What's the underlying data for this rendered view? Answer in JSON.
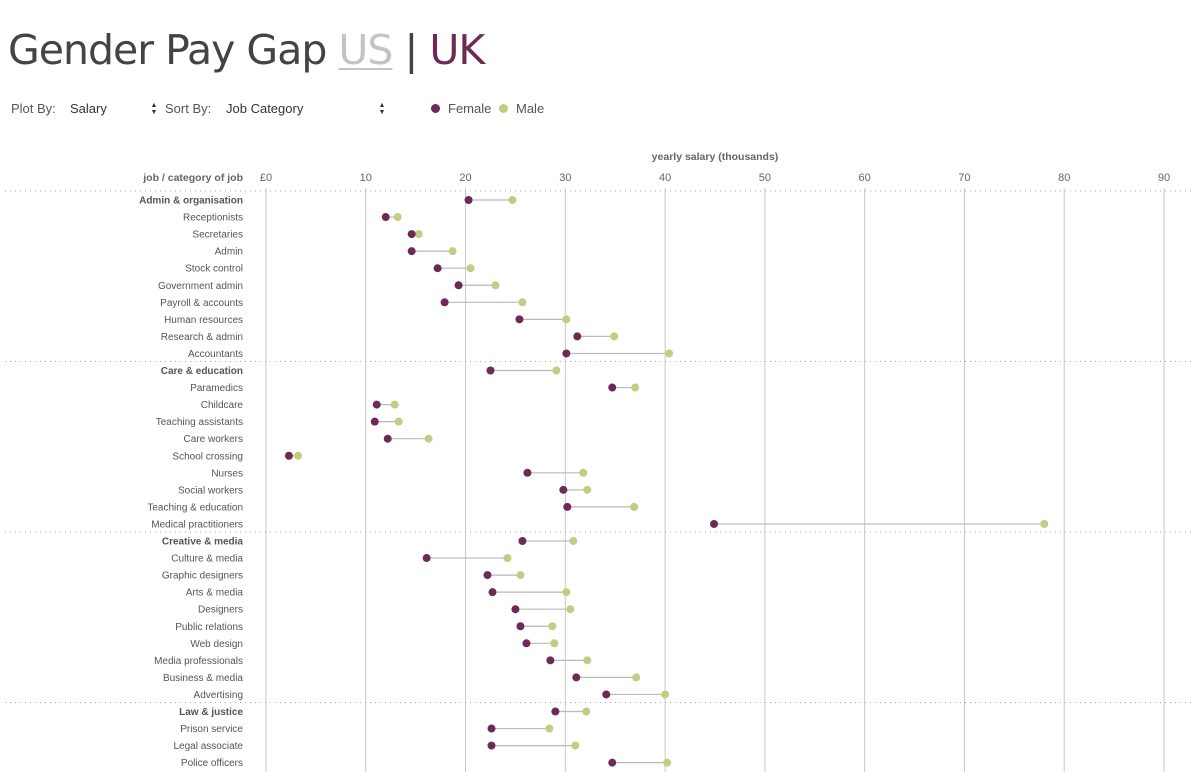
{
  "title": {
    "main": "Gender Pay Gap",
    "us_link": "US",
    "separator": "|",
    "uk_label": "UK"
  },
  "controls": {
    "plot_by_label": "Plot By:",
    "plot_by_value": "Salary",
    "sort_by_label": "Sort By:",
    "sort_by_value": "Job Category"
  },
  "colors": {
    "female": "#6d2a55",
    "male": "#c5cc82",
    "line": "#b9b9b9",
    "grid": "#c8c8c8"
  },
  "chart_data": {
    "type": "dumbbell",
    "title": "yearly salary (thousands)",
    "ylabel": "job / category of job",
    "xlim": [
      0,
      90
    ],
    "ticks": [
      0,
      10,
      20,
      30,
      40,
      50,
      60,
      70,
      80,
      90
    ],
    "tick_labels": [
      "£0",
      "10",
      "20",
      "30",
      "40",
      "50",
      "60",
      "70",
      "80",
      "90"
    ],
    "legend": [
      {
        "name": "Female",
        "key": "female"
      },
      {
        "name": "Male",
        "key": "male"
      }
    ],
    "groups": [
      {
        "category": "Admin & organisation",
        "female": 20.3,
        "male": 24.7,
        "rows": [
          {
            "label": "Receptionists",
            "female": 12.0,
            "male": 13.2
          },
          {
            "label": "Secretaries",
            "female": 14.6,
            "male": 15.3
          },
          {
            "label": "Admin",
            "female": 14.6,
            "male": 18.7
          },
          {
            "label": "Stock control",
            "female": 17.2,
            "male": 20.5
          },
          {
            "label": "Government admin",
            "female": 19.3,
            "male": 23.0
          },
          {
            "label": "Payroll & accounts",
            "female": 17.9,
            "male": 25.7
          },
          {
            "label": "Human resources",
            "female": 25.4,
            "male": 30.1
          },
          {
            "label": "Research & admin",
            "female": 31.2,
            "male": 34.9
          },
          {
            "label": "Accountants",
            "female": 30.1,
            "male": 40.4
          }
        ]
      },
      {
        "category": "Care & education",
        "female": 22.5,
        "male": 29.1,
        "rows": [
          {
            "label": "Paramedics",
            "female": 34.7,
            "male": 37.0
          },
          {
            "label": "Childcare",
            "female": 11.1,
            "male": 12.9
          },
          {
            "label": "Teaching assistants",
            "female": 10.9,
            "male": 13.3
          },
          {
            "label": "Care workers",
            "female": 12.2,
            "male": 16.3
          },
          {
            "label": "School crossing",
            "female": 2.3,
            "male": 3.2
          },
          {
            "label": "Nurses",
            "female": 26.2,
            "male": 31.8
          },
          {
            "label": "Social workers",
            "female": 29.8,
            "male": 32.2
          },
          {
            "label": "Teaching & education",
            "female": 30.2,
            "male": 36.9
          },
          {
            "label": "Medical practitioners",
            "female": 44.9,
            "male": 78.0
          }
        ]
      },
      {
        "category": "Creative & media",
        "female": 25.7,
        "male": 30.8,
        "rows": [
          {
            "label": "Culture & media",
            "female": 16.1,
            "male": 24.2
          },
          {
            "label": "Graphic designers",
            "female": 22.2,
            "male": 25.5
          },
          {
            "label": "Arts & media",
            "female": 22.7,
            "male": 30.1
          },
          {
            "label": "Designers",
            "female": 25.0,
            "male": 30.5
          },
          {
            "label": "Public relations",
            "female": 25.5,
            "male": 28.7
          },
          {
            "label": "Web design",
            "female": 26.1,
            "male": 28.9
          },
          {
            "label": "Media professionals",
            "female": 28.5,
            "male": 32.2
          },
          {
            "label": "Business & media",
            "female": 31.1,
            "male": 37.1
          },
          {
            "label": "Advertising",
            "female": 34.1,
            "male": 40.0
          }
        ]
      },
      {
        "category": "Law & justice",
        "female": 29.0,
        "male": 32.1,
        "rows": [
          {
            "label": "Prison service",
            "female": 22.6,
            "male": 28.4
          },
          {
            "label": "Legal associate",
            "female": 22.6,
            "male": 31.0
          },
          {
            "label": "Police officers",
            "female": 34.7,
            "male": 40.2
          }
        ]
      }
    ]
  }
}
